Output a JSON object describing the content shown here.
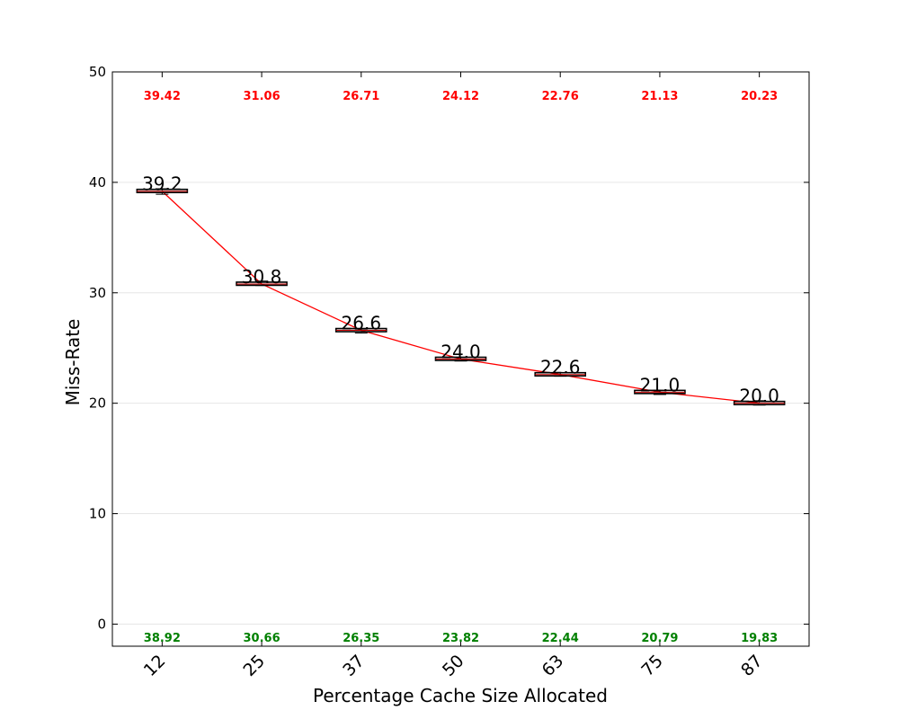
{
  "chart_data": {
    "type": "box",
    "xlabel": "Percentage Cache Size Allocated",
    "ylabel": "Miss-Rate",
    "ylim": [
      -2,
      50
    ],
    "yticks": [
      0,
      10,
      20,
      30,
      40,
      50
    ],
    "categories": [
      "12",
      "25",
      "37",
      "50",
      "63",
      "75",
      "87"
    ],
    "medians": [
      39.2,
      30.8,
      26.6,
      24.0,
      22.6,
      21.0,
      20.0
    ],
    "median_labels": [
      "39.2",
      "30.8",
      "26.6",
      "24.0",
      "22.6",
      "21.0",
      "20.0"
    ],
    "max_values": [
      "39.42",
      "31.06",
      "26.71",
      "24.12",
      "22.76",
      "21.13",
      "20.23"
    ],
    "min_values": [
      "38.92",
      "30.66",
      "26.35",
      "23.82",
      "22.44",
      "20.79",
      "19.83"
    ],
    "grid": "horizontal",
    "colors": {
      "line": "#ff0000",
      "max_label": "#ff0000",
      "min_label": "#008000",
      "box": "#000000"
    }
  }
}
